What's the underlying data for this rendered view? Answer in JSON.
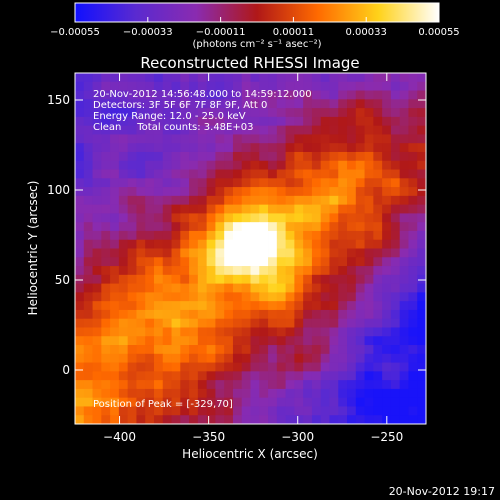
{
  "chart_data": {
    "type": "heatmap",
    "title": "Reconstructed RHESSI Image",
    "xlabel": "Heliocentric X (arcsec)",
    "ylabel": "Heliocentric Y (arcsec)",
    "xlim": [
      -425,
      -228
    ],
    "ylim": [
      -30,
      165
    ],
    "xticks": [
      -400,
      -350,
      -300,
      -250
    ],
    "xtick_labels": [
      "−400",
      "−350",
      "−300",
      "−250"
    ],
    "yticks": [
      0,
      50,
      100,
      150
    ],
    "ytick_labels": [
      "0",
      "50",
      "100",
      "150"
    ],
    "colorbar": {
      "range": [
        -0.00055,
        0.00055
      ],
      "ticks": [
        -0.00055,
        -0.00033,
        -0.00011,
        0.00011,
        0.00033,
        0.00055
      ],
      "tick_labels": [
        "−0.00055",
        "−0.00033",
        "−0.00011",
        "0.00011",
        "0.00033",
        "0.00055"
      ],
      "unit_label": "(photons cm⁻² s⁻¹ asec⁻²)",
      "colormap": [
        "#1010ff",
        "#5a2ad0",
        "#8a2bb0",
        "#b01818",
        "#ff6a00",
        "#ffd21a",
        "#ffffff"
      ]
    },
    "annotations": [
      "20-Nov-2012 14:56:48.000 to 14:59:12.000",
      "Detectors: 3F 5F 6F 7F 8F 9F, Att 0",
      "Energy Range: 12.0 - 25.0 keV",
      "Clean     Total counts: 3.48E+03"
    ],
    "peak_label": "Position of Peak = [-329,70]",
    "peak": [
      -329,
      70
    ]
  },
  "timestamp": "20-Nov-2012 19:17"
}
